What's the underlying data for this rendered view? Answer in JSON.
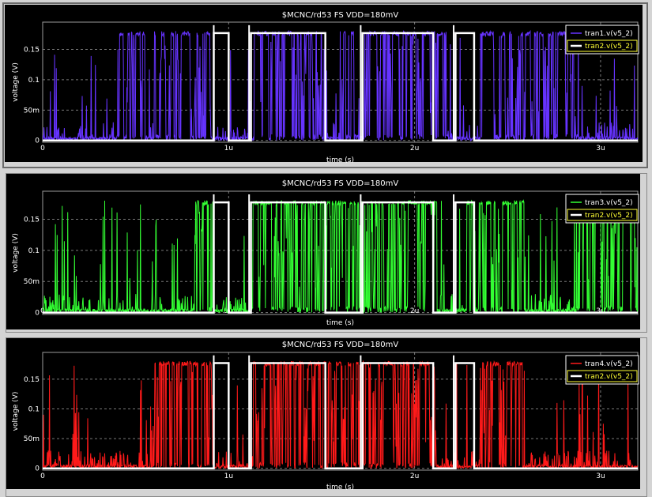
{
  "colors": {
    "background": "#000000",
    "grid": "#7a7a7a",
    "reference": "#ffffff",
    "legend_box_border": "#ffffff",
    "legend_ref_text": "#ffff33"
  },
  "chart_data": [
    {
      "type": "line",
      "title": "$MCNC/rd53 FS VDD=180mV",
      "xlabel": "time (s)",
      "ylabel": "voltage (V)",
      "xlim": [
        0,
        3.2
      ],
      "ylim": [
        -0.003,
        0.195
      ],
      "x_ticks": [
        0,
        1,
        2,
        3
      ],
      "x_tick_labels": [
        "0",
        "1u",
        "2u",
        "3u"
      ],
      "y_ticks": [
        0,
        0.05,
        0.1,
        0.15
      ],
      "y_tick_labels": [
        "0",
        "50m",
        "0.1",
        "0.15"
      ],
      "grid": true,
      "legend_position": "top-right",
      "legend": [
        {
          "label": "tran1.v(v5_2)",
          "color": "#6633ff"
        },
        {
          "label": "tran2.v(v5_2)",
          "color": "#ffffff"
        }
      ],
      "series": [
        {
          "name": "tran1.v(v5_2)",
          "color": "#6633ff",
          "noise": {
            "low_level": 0.0,
            "high_level": 0.18,
            "high_density": 0.35,
            "seed": 11,
            "active_segments": [
              [
                0.4,
                0.55
              ],
              [
                0.6,
                0.9
              ],
              [
                1.13,
                1.5
              ],
              [
                1.6,
                2.18
              ],
              [
                2.35,
                2.88
              ]
            ]
          }
        },
        {
          "name": "tran2.v(v5_2)",
          "color": "#ffffff",
          "high_level": 0.177,
          "low_level": 0.0,
          "high_intervals": [
            [
              0.92,
              1.0
            ],
            [
              1.12,
              1.52
            ],
            [
              1.72,
              2.1
            ],
            [
              2.22,
              2.32
            ]
          ],
          "spikes": [
            {
              "x": 0.92,
              "y": 0.19
            },
            {
              "x": 1.11,
              "y": 0.19
            },
            {
              "x": 1.71,
              "y": 0.19
            },
            {
              "x": 2.21,
              "y": 0.19
            }
          ]
        }
      ]
    },
    {
      "type": "line",
      "title": "$MCNC/rd53 FS VDD=180mV",
      "xlabel": "time (s)",
      "ylabel": "voltage (V)",
      "xlim": [
        0,
        3.2
      ],
      "ylim": [
        -0.003,
        0.195
      ],
      "x_ticks": [
        0,
        1,
        2,
        3
      ],
      "x_tick_labels": [
        "0",
        "1u",
        "2u",
        "3u"
      ],
      "y_ticks": [
        0,
        0.05,
        0.1,
        0.15
      ],
      "y_tick_labels": [
        "0",
        "50m",
        "0.1",
        "0.15"
      ],
      "grid": true,
      "legend_position": "top-right",
      "legend": [
        {
          "label": "tran3.v(v5_2)",
          "color": "#33ff33"
        },
        {
          "label": "tran2.v(v5_2)",
          "color": "#ffffff"
        }
      ],
      "series": [
        {
          "name": "tran3.v(v5_2)",
          "color": "#33ff33",
          "noise": {
            "low_level": 0.0,
            "high_level": 0.18,
            "high_density": 0.3,
            "seed": 23,
            "active_segments": [
              [
                0.82,
                0.92
              ],
              [
                1.12,
                2.12
              ],
              [
                2.28,
                2.6
              ],
              [
                2.85,
                3.2
              ]
            ]
          }
        },
        {
          "name": "tran2.v(v5_2)",
          "color": "#ffffff",
          "high_level": 0.177,
          "low_level": 0.0,
          "high_intervals": [
            [
              0.92,
              1.0
            ],
            [
              1.12,
              1.52
            ],
            [
              1.72,
              2.1
            ],
            [
              2.22,
              2.32
            ]
          ],
          "spikes": [
            {
              "x": 0.92,
              "y": 0.19
            },
            {
              "x": 1.11,
              "y": 0.19
            },
            {
              "x": 1.71,
              "y": 0.19
            },
            {
              "x": 2.21,
              "y": 0.19
            }
          ]
        }
      ]
    },
    {
      "type": "line",
      "title": "$MCNC/rd53 FS VDD=180mV",
      "xlabel": "time (s)",
      "ylabel": "voltage (V)",
      "xlim": [
        0,
        3.2
      ],
      "ylim": [
        -0.003,
        0.195
      ],
      "x_ticks": [
        0,
        1,
        2,
        3
      ],
      "x_tick_labels": [
        "0",
        "1u",
        "2u",
        "3u"
      ],
      "y_ticks": [
        0,
        0.05,
        0.1,
        0.15
      ],
      "y_tick_labels": [
        "0",
        "50m",
        "0.1",
        "0.15"
      ],
      "grid": true,
      "legend_position": "top-right",
      "legend": [
        {
          "label": "tran4.v(v5_2)",
          "color": "#ff1a1a"
        },
        {
          "label": "tran2.v(v5_2)",
          "color": "#ffffff"
        }
      ],
      "series": [
        {
          "name": "tran4.v(v5_2)",
          "color": "#ff1a1a",
          "noise": {
            "low_level": 0.0,
            "high_level": 0.18,
            "high_density": 0.4,
            "seed": 37,
            "active_segments": [
              [
                0.6,
                0.92
              ],
              [
                1.13,
                2.12
              ],
              [
                2.35,
                2.58
              ]
            ]
          }
        },
        {
          "name": "tran2.v(v5_2)",
          "color": "#ffffff",
          "high_level": 0.177,
          "low_level": 0.0,
          "high_intervals": [
            [
              0.92,
              1.0
            ],
            [
              1.12,
              1.52
            ],
            [
              1.72,
              2.1
            ],
            [
              2.22,
              2.32
            ]
          ],
          "spikes": [
            {
              "x": 0.92,
              "y": 0.19
            },
            {
              "x": 1.11,
              "y": 0.19
            },
            {
              "x": 1.71,
              "y": 0.19
            },
            {
              "x": 2.21,
              "y": 0.19
            }
          ]
        }
      ]
    }
  ]
}
